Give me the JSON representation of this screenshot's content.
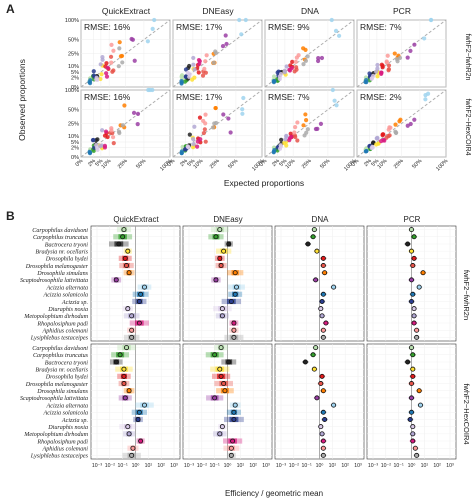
{
  "panel_labels": {
    "a": "A",
    "b": "B"
  },
  "columns": [
    "QuickExtract",
    "DNEasy",
    "DNA",
    "PCR"
  ],
  "primer_sets": [
    "fwhF2−fwhR2n",
    "fwhF2−HexCOIR4"
  ],
  "chart_data": [
    {
      "type": "scatter",
      "panel": "A",
      "xlabel": "Expected proportions",
      "ylabel": "Observed proportions",
      "x_ticks": [
        "0%",
        "2%",
        "5%",
        "10%",
        "25%",
        "50%",
        "100%"
      ],
      "y_ticks": [
        "0%",
        "2%",
        "5%",
        "10%",
        "25%",
        "50%",
        "100%"
      ],
      "tick_values": [
        0,
        2,
        5,
        10,
        25,
        50,
        100
      ],
      "rmse": [
        [
          "RMSE: 16%",
          "RMSE: 17%",
          "RMSE: 9%",
          "RMSE: 7%"
        ],
        [
          "RMSE: 16%",
          "RMSE: 17%",
          "RMSE: 7%",
          "RMSE: 2%"
        ]
      ],
      "reference_line": "y = x",
      "grid": true
    },
    {
      "type": "scatter",
      "panel": "B",
      "xlabel": "Efficiency / geometric mean",
      "x_scale": "log10",
      "x_ticks": [
        "10⁻³",
        "10⁻²",
        "10⁻¹",
        "10⁰",
        "10¹",
        "10²",
        "10³"
      ],
      "x_tick_exponents": [
        -3,
        -2,
        -1,
        0,
        1,
        2,
        3
      ],
      "reference_line": "x = 1",
      "species": [
        "Carpophilus davidsoni",
        "Carpophilus truncatus",
        "Bactrocera tryoni",
        "Bradysia nr. ocellaris",
        "Drosophila hydei",
        "Drosophila melanogaster",
        "Drosophila simulans",
        "Scaptodrosophila lativittata",
        "Acizzia alternata",
        "Acizzia solanicola",
        "Acizzia sp.",
        "Diuraphis noxia",
        "Metopolophium dirhodum",
        "Rhopalosiphum padi",
        "Aphidius colemani",
        "Lysiphlebus testaceipes"
      ],
      "species_colors": [
        "#b7dfae",
        "#33a02c",
        "#222222",
        "#ffe033",
        "#e31a1c",
        "#e8544a",
        "#ff7f00",
        "#9b3fa5",
        "#9fd3ef",
        "#1f78b4",
        "#2a3d8f",
        "#d9c9e8",
        "#b2a8d4",
        "#d81b7f",
        "#fb9a99",
        "#aaaaaa"
      ],
      "log10_efficiency": {
        "fwhF2−fwhR2n": {
          "QuickExtract": [
            -0.9,
            -1.0,
            -1.3,
            -0.6,
            -0.8,
            -0.7,
            -0.5,
            -1.5,
            0.7,
            0.4,
            0.3,
            -0.6,
            -0.3,
            0.3,
            -0.3,
            -0.3
          ],
          "DNEasy": [
            -0.6,
            -0.9,
            0.1,
            -0.3,
            -0.6,
            -0.5,
            0.6,
            -0.9,
            0.7,
            0.6,
            0.3,
            -0.4,
            -0.4,
            0.5,
            0.5,
            0.5
          ],
          "DNA": [
            -0.4,
            -0.5,
            -0.9,
            -0.2,
            0.3,
            0.3,
            0.4,
            -0.3,
            1.1,
            0.3,
            0.2,
            0.1,
            0.2,
            0.5,
            0.3,
            0.3
          ],
          "PCR": [
            0.0,
            0.2,
            -0.3,
            0.0,
            0.2,
            0.1,
            0.9,
            0.0,
            0.6,
            0.1,
            0.0,
            0.2,
            0.2,
            0.2,
            0.4,
            0.4
          ]
        },
        "fwhF2−HexCOIR4": {
          "QuickExtract": [
            -0.7,
            -1.2,
            -1.5,
            -0.9,
            -0.9,
            -0.9,
            -0.5,
            -0.8,
            0.7,
            0.3,
            0.2,
            -0.6,
            -0.5,
            0.4,
            -0.2,
            -0.3
          ],
          "DNEasy": [
            -0.5,
            -1.0,
            0.1,
            -0.6,
            -0.5,
            -0.3,
            -0.2,
            -1.0,
            0.6,
            0.5,
            0.5,
            -0.4,
            -0.6,
            0.4,
            0.3,
            0.3
          ],
          "DNA": [
            -0.3,
            -0.5,
            -1.1,
            -0.4,
            0.2,
            0.1,
            0.3,
            -0.2,
            1.1,
            0.3,
            0.4,
            0.1,
            0.2,
            0.3,
            0.3,
            0.3
          ],
          "PCR": [
            0.0,
            0.1,
            -0.3,
            0.1,
            0.1,
            0.0,
            0.6,
            0.0,
            0.7,
            0.0,
            -0.1,
            0.1,
            0.1,
            0.1,
            0.3,
            0.4
          ]
        }
      }
    }
  ]
}
